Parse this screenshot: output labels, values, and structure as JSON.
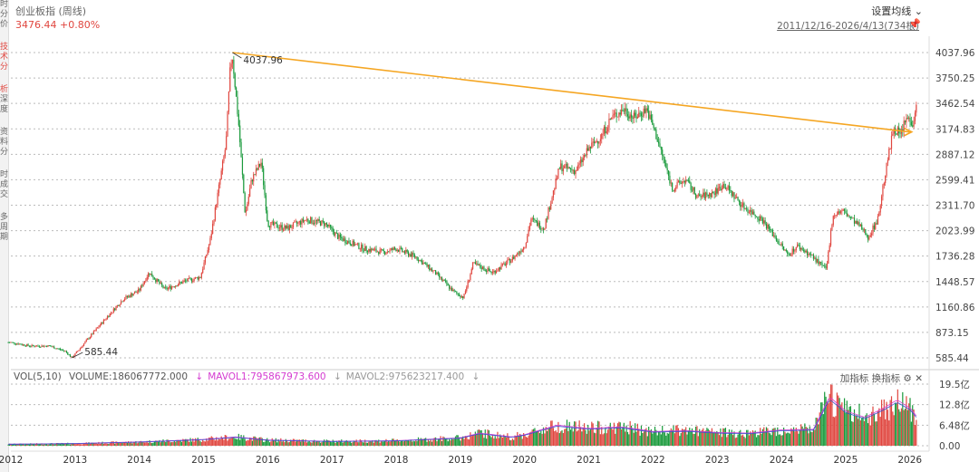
{
  "header": {
    "title": "创业板指 (周线)",
    "price": "3476.44",
    "change": "+0.80%",
    "set_ma_label": "设置均线",
    "range": "2011/12/16-2026/4/13(734根)"
  },
  "left_rail": [
    "时",
    "分",
    "价",
    "技",
    "术",
    "分",
    "析",
    "深",
    "度",
    "资",
    "料",
    "分",
    "时",
    "成",
    "交",
    "多",
    "周",
    "期"
  ],
  "volume_panel": {
    "label": "VOL(5,10)",
    "volume": "VOLUME:186067772.000",
    "mavol1": "MAVOL1:795867973.600",
    "mavol2": "MAVOL2:975623217.400",
    "add_indicator": "加指标",
    "switch_indicator": "换指标"
  },
  "colors": {
    "up": "#e0463f",
    "down": "#1a9a3c",
    "trendline": "#f5a623",
    "mavol1": "#d43bd0",
    "mavol2": "#3a4fd0"
  },
  "chart_data": {
    "type": "candlestick",
    "y_ticks": [
      "4037.96",
      "3750.25",
      "3462.54",
      "3174.83",
      "2887.12",
      "2599.41",
      "2311.70",
      "2023.99",
      "1736.28",
      "1448.57",
      "1160.86",
      "873.15",
      "585.44"
    ],
    "ylim": [
      585.44,
      4037.96
    ],
    "x_ticks": [
      "2012",
      "2013",
      "2014",
      "2015",
      "2016",
      "2017",
      "2018",
      "2019",
      "2020",
      "2021",
      "2022",
      "2023",
      "2024",
      "2025",
      "2026"
    ],
    "xlim": [
      2012.0,
      2026.3
    ],
    "annotations": {
      "high": "4037.96",
      "low": "585.44"
    },
    "trendline": {
      "from": [
        2015.45,
        4037.96
      ],
      "to": [
        2026.0,
        3140
      ]
    },
    "price_path": [
      [
        2012.0,
        760
      ],
      [
        2012.3,
        720
      ],
      [
        2012.6,
        720
      ],
      [
        2012.85,
        660
      ],
      [
        2012.95,
        585
      ],
      [
        2013.2,
        800
      ],
      [
        2013.5,
        1050
      ],
      [
        2013.75,
        1250
      ],
      [
        2014.0,
        1350
      ],
      [
        2014.15,
        1550
      ],
      [
        2014.4,
        1360
      ],
      [
        2014.7,
        1450
      ],
      [
        2014.95,
        1500
      ],
      [
        2015.1,
        1900
      ],
      [
        2015.35,
        3000
      ],
      [
        2015.42,
        3900
      ],
      [
        2015.45,
        4000
      ],
      [
        2015.55,
        3200
      ],
      [
        2015.65,
        2200
      ],
      [
        2015.75,
        2600
      ],
      [
        2015.9,
        2800
      ],
      [
        2016.0,
        2100
      ],
      [
        2016.3,
        2050
      ],
      [
        2016.6,
        2150
      ],
      [
        2016.9,
        2100
      ],
      [
        2017.1,
        1950
      ],
      [
        2017.5,
        1820
      ],
      [
        2017.8,
        1780
      ],
      [
        2018.0,
        1820
      ],
      [
        2018.3,
        1730
      ],
      [
        2018.6,
        1550
      ],
      [
        2018.9,
        1330
      ],
      [
        2019.05,
        1270
      ],
      [
        2019.2,
        1650
      ],
      [
        2019.5,
        1550
      ],
      [
        2019.8,
        1700
      ],
      [
        2020.0,
        1850
      ],
      [
        2020.1,
        2150
      ],
      [
        2020.3,
        2050
      ],
      [
        2020.55,
        2750
      ],
      [
        2020.8,
        2700
      ],
      [
        2021.0,
        2950
      ],
      [
        2021.2,
        3100
      ],
      [
        2021.35,
        3300
      ],
      [
        2021.55,
        3400
      ],
      [
        2021.7,
        3300
      ],
      [
        2021.9,
        3400
      ],
      [
        2022.05,
        3100
      ],
      [
        2022.3,
        2500
      ],
      [
        2022.5,
        2600
      ],
      [
        2022.7,
        2400
      ],
      [
        2022.95,
        2450
      ],
      [
        2023.1,
        2550
      ],
      [
        2023.4,
        2300
      ],
      [
        2023.7,
        2150
      ],
      [
        2023.95,
        1900
      ],
      [
        2024.1,
        1750
      ],
      [
        2024.25,
        1850
      ],
      [
        2024.45,
        1750
      ],
      [
        2024.7,
        1580
      ],
      [
        2024.8,
        2200
      ],
      [
        2024.95,
        2250
      ],
      [
        2025.1,
        2150
      ],
      [
        2025.25,
        2050
      ],
      [
        2025.35,
        1950
      ],
      [
        2025.5,
        2150
      ],
      [
        2025.6,
        2600
      ],
      [
        2025.75,
        3200
      ],
      [
        2025.85,
        3100
      ],
      [
        2025.95,
        3300
      ],
      [
        2026.05,
        3250
      ],
      [
        2026.1,
        3476
      ]
    ],
    "volume_y_ticks": [
      "19.5亿",
      "12.8亿",
      "6.48亿",
      "0.00"
    ],
    "volume_ylim": [
      0,
      19.5
    ],
    "volume_path": [
      [
        2012.0,
        0.5
      ],
      [
        2013.0,
        0.7
      ],
      [
        2014.0,
        1.2
      ],
      [
        2015.0,
        2.0
      ],
      [
        2015.5,
        2.8
      ],
      [
        2016.0,
        1.8
      ],
      [
        2017.0,
        1.4
      ],
      [
        2018.0,
        1.6
      ],
      [
        2019.0,
        2.5
      ],
      [
        2019.3,
        4.0
      ],
      [
        2019.8,
        2.8
      ],
      [
        2020.0,
        3.5
      ],
      [
        2020.5,
        6.5
      ],
      [
        2021.0,
        5.5
      ],
      [
        2021.5,
        6.0
      ],
      [
        2022.0,
        4.5
      ],
      [
        2022.5,
        4.8
      ],
      [
        2023.0,
        4.2
      ],
      [
        2023.5,
        4.0
      ],
      [
        2024.0,
        5.0
      ],
      [
        2024.5,
        5.2
      ],
      [
        2024.75,
        15.5
      ],
      [
        2025.0,
        11.0
      ],
      [
        2025.3,
        9.0
      ],
      [
        2025.6,
        12.0
      ],
      [
        2025.8,
        14.5
      ],
      [
        2026.0,
        12.0
      ],
      [
        2026.1,
        9.5
      ]
    ]
  }
}
